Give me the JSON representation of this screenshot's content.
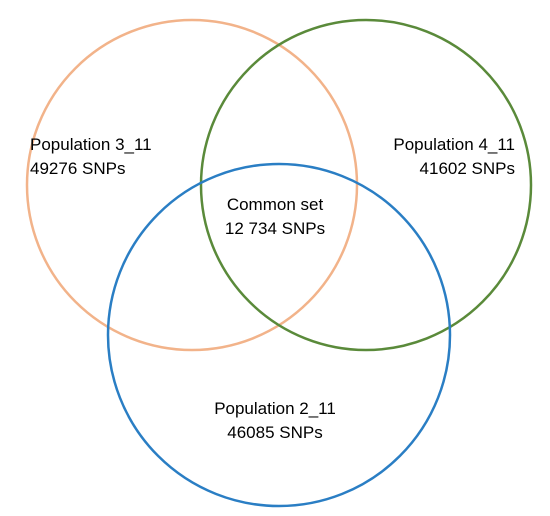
{
  "sets": [
    {
      "id": "pop3",
      "name": "Population 3_11",
      "count": "49276 SNPs",
      "color": "#f2b38a"
    },
    {
      "id": "pop4",
      "name": "Population 4_11",
      "count": "41602 SNPs",
      "color": "#5a8a3a"
    },
    {
      "id": "pop2",
      "name": "Population 2_11",
      "count": "46085 SNPs",
      "color": "#2a7ec4"
    }
  ],
  "intersection": {
    "name": "Common set",
    "count": "12 734 SNPs"
  }
}
